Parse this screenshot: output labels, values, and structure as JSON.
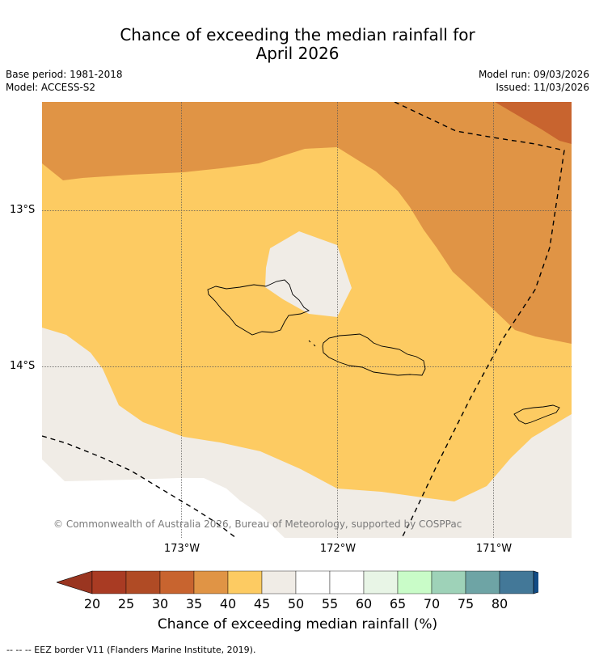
{
  "header": {
    "title_line1": "Chance of exceeding the median rainfall for",
    "title_line2": "April 2026",
    "base_period": "Base period: 1981-2018",
    "model": "Model: ACCESS-S2",
    "model_run": "Model run: 09/03/2026",
    "issued": "Issued: 11/03/2026"
  },
  "map": {
    "lat_labels": [
      "13°S",
      "14°S"
    ],
    "lon_labels": [
      "173°W",
      "172°W",
      "171°W"
    ],
    "copyright": "© Commonwealth of Australia 2026, Bureau of Meteorology, supported by COSPPac",
    "colors": {
      "25_30": "#c8642f",
      "30_35": "#e09445",
      "35_40": "#fdcb62",
      "40_45": "#f0ece6",
      "45_55": "#ffffff",
      "eez_border": "#000000"
    }
  },
  "colorbar": {
    "ticks": [
      "20",
      "25",
      "30",
      "35",
      "40",
      "45",
      "50",
      "55",
      "60",
      "65",
      "70",
      "75",
      "80"
    ],
    "colors": [
      "#a93b23",
      "#b04b25",
      "#c8642f",
      "#e09445",
      "#fdcb62",
      "#f0ece6",
      "#ffffff",
      "#ffffff",
      "#e8f5e6",
      "#c9fcc8",
      "#9ed2b8",
      "#6ea4a5",
      "#437898"
    ],
    "under_color": "#9a3520",
    "over_color": "#134c85",
    "label": "Chance of exceeding median rainfall (%)"
  },
  "footnote": "--  --  -- EEZ border V11 (Flanders Marine Institute, 2019)."
}
